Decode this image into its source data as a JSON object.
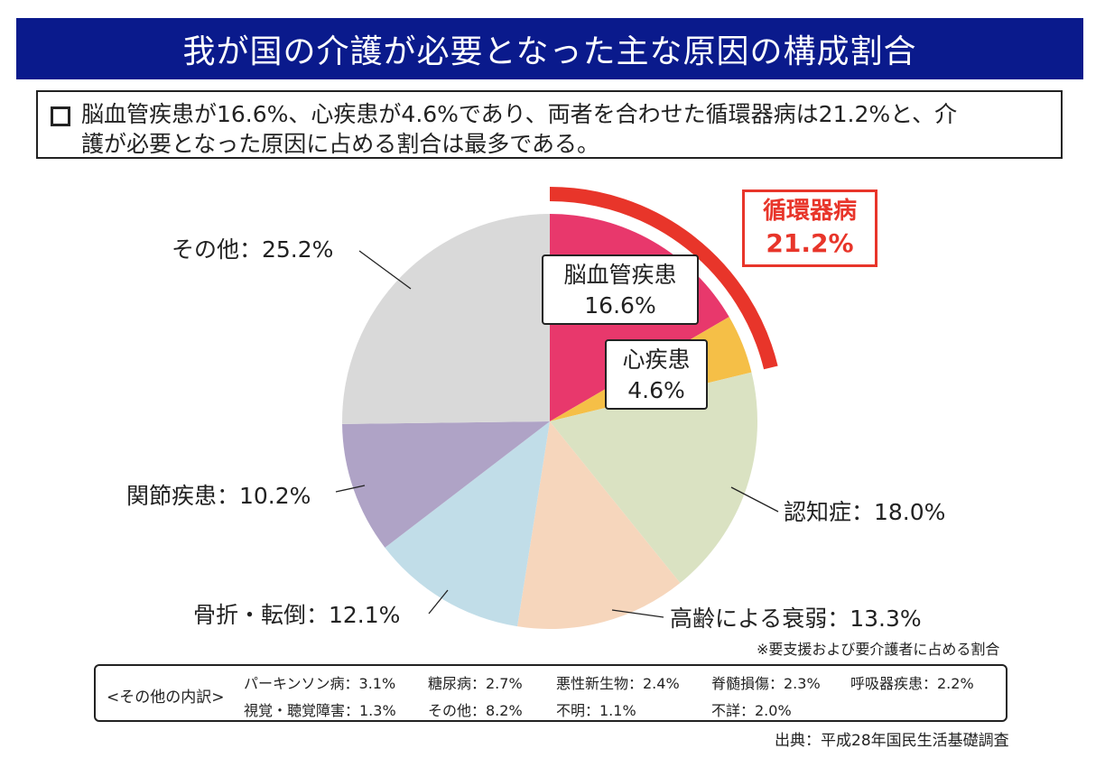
{
  "title": "我が国の介護が必要となった主な原因の構成割合",
  "summary": {
    "line1": "脳血管疾患が16.6%、心疾患が4.6%であり、両者を合わせた循環器病は21.2%と、介",
    "line2": "護が必要となった原因に占める割合は最多である。"
  },
  "chart_data": {
    "type": "pie",
    "start": "12 o'clock, clockwise",
    "slices": [
      {
        "label": "脳血管疾患",
        "value": 16.6,
        "color": "#e8386c"
      },
      {
        "label": "心疾患",
        "value": 4.6,
        "color": "#f5bf47"
      },
      {
        "label": "認知症",
        "value": 18.0,
        "color": "#dae2c2"
      },
      {
        "label": "高齢による衰弱",
        "value": 13.3,
        "color": "#f6d6bc"
      },
      {
        "label": "骨折・転倒",
        "value": 12.1,
        "color": "#c1dde8"
      },
      {
        "label": "関節疾患",
        "value": 10.2,
        "color": "#afa3c6"
      },
      {
        "label": "その他",
        "value": 25.2,
        "color": "#d9d9d9"
      }
    ],
    "group_highlight": {
      "label": "循環器病",
      "value_text": "21.2%",
      "color": "#e8352a"
    }
  },
  "labels": {
    "cerebro_name": "脳血管疾患",
    "cerebro_value": "16.6%",
    "heart_name": "心疾患",
    "heart_value": "4.6%",
    "dementia": "認知症：18.0%",
    "frailty": "高齢による衰弱：13.3%",
    "fracture": "骨折・転倒：12.1%",
    "joint": "関節疾患：10.2%",
    "other": "その他：25.2%",
    "circulatory_name": "循環器病",
    "circulatory_value": "21.2%"
  },
  "note": "※要支援および要介護者に占める割合",
  "breakdown": {
    "heading": "<その他の内訳>",
    "items": [
      "パーキンソン病：3.1%",
      "糖尿病：2.7%",
      "悪性新生物：2.4%",
      "脊髄損傷：2.3%",
      "呼吸器疾患：2.2%",
      "視覚・聴覚障害：1.3%",
      "その他：8.2%",
      "不明：1.1%",
      "不詳：2.0%"
    ]
  },
  "source": "出典：平成28年国民生活基礎調査"
}
